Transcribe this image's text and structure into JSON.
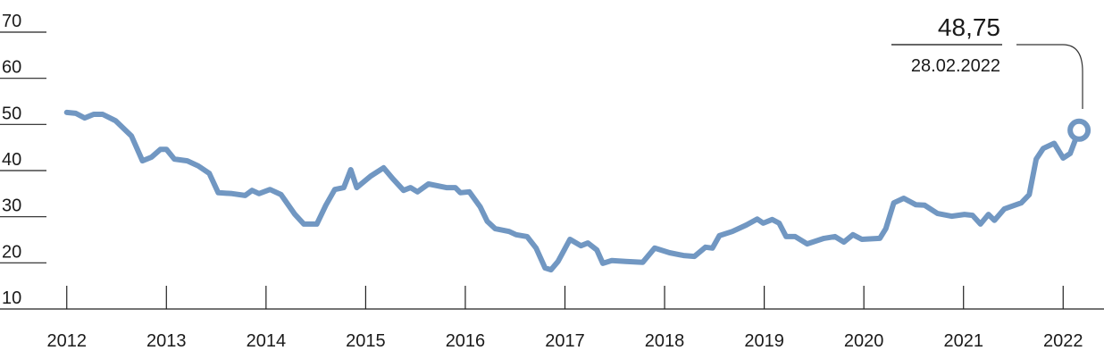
{
  "chart_data": {
    "type": "line",
    "x": [
      2012.0,
      2012.09,
      2012.18,
      2012.27,
      2012.36,
      2012.49,
      2012.65,
      2012.76,
      2012.85,
      2012.94,
      2013.0,
      2013.08,
      2013.21,
      2013.32,
      2013.43,
      2013.52,
      2013.66,
      2013.79,
      2013.86,
      2013.93,
      2014.04,
      2014.15,
      2014.29,
      2014.38,
      2014.51,
      2014.6,
      2014.69,
      2014.78,
      2014.85,
      2014.91,
      2015.05,
      2015.18,
      2015.27,
      2015.38,
      2015.45,
      2015.52,
      2015.63,
      2015.81,
      2015.9,
      2015.95,
      2016.04,
      2016.15,
      2016.22,
      2016.3,
      2016.44,
      2016.51,
      2016.62,
      2016.71,
      2016.8,
      2016.86,
      2016.93,
      2017.05,
      2017.16,
      2017.23,
      2017.32,
      2017.38,
      2017.47,
      2017.61,
      2017.78,
      2017.9,
      2018.05,
      2018.19,
      2018.3,
      2018.41,
      2018.48,
      2018.55,
      2018.68,
      2018.82,
      2018.93,
      2018.99,
      2019.08,
      2019.15,
      2019.22,
      2019.31,
      2019.43,
      2019.6,
      2019.71,
      2019.8,
      2019.89,
      2019.98,
      2020.16,
      2020.22,
      2020.3,
      2020.4,
      2020.52,
      2020.61,
      2020.74,
      2020.88,
      2021.01,
      2021.09,
      2021.17,
      2021.25,
      2021.31,
      2021.41,
      2021.58,
      2021.66,
      2021.73,
      2021.8,
      2021.91,
      2022.0,
      2022.07,
      2022.12,
      2022.16
    ],
    "values": [
      52.6,
      52.4,
      51.4,
      52.2,
      52.2,
      50.8,
      47.5,
      42.1,
      42.9,
      44.6,
      44.6,
      42.5,
      42.1,
      41,
      39.4,
      35.2,
      35,
      34.6,
      35.7,
      35,
      35.9,
      34.8,
      30.5,
      28.4,
      28.4,
      32.5,
      35.9,
      36.3,
      40.2,
      36.3,
      38.8,
      40.6,
      38.3,
      35.7,
      36.3,
      35.4,
      37.1,
      36.3,
      36.3,
      35.2,
      35.4,
      32.1,
      29,
      27.4,
      26.8,
      26.1,
      25.7,
      23.2,
      18.9,
      18.5,
      20.3,
      25.1,
      23.7,
      24.3,
      22.8,
      19.9,
      20.5,
      20.3,
      20.1,
      23.2,
      22.2,
      21.6,
      21.4,
      23.4,
      23.2,
      25.9,
      26.8,
      28.2,
      29.5,
      28.6,
      29.4,
      28.6,
      25.7,
      25.7,
      24.1,
      25.3,
      25.7,
      24.5,
      26.1,
      25.1,
      25.3,
      27.4,
      33,
      34,
      32.6,
      32.5,
      30.7,
      30.1,
      30.5,
      30.3,
      28.4,
      30.5,
      29.2,
      31.7,
      33,
      34.8,
      42.5,
      44.8,
      45.9,
      42.7,
      43.7,
      46.5,
      48.75
    ],
    "color": "#7197c2",
    "xlim": [
      2011.33,
      2022.41
    ],
    "xticks": [
      2012,
      2013,
      2014,
      2015,
      2016,
      2017,
      2018,
      2019,
      2020,
      2021,
      2022
    ],
    "ylim": [
      10,
      70
    ],
    "yticks": [
      10,
      20,
      30,
      40,
      50,
      60,
      70
    ],
    "annotation": {
      "text": "48,75",
      "date": "28.02.2022"
    }
  }
}
